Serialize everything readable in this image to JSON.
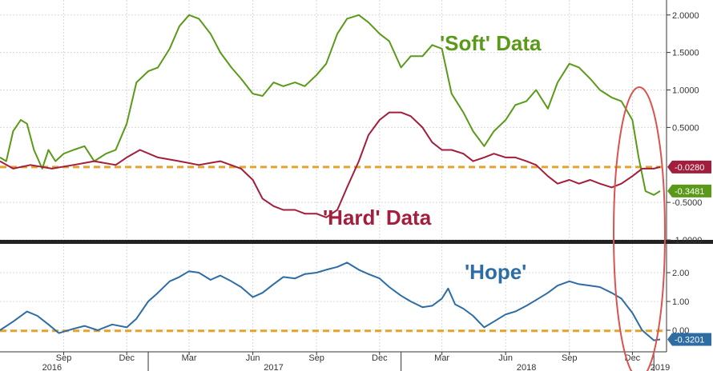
{
  "chart_data": [
    {
      "type": "line",
      "panel": "top",
      "ylim": [
        -1.0,
        2.2
      ],
      "yticks": [
        "2.0000",
        "1.5000",
        "1.0000",
        "0.5000",
        "-0.5000",
        "-1.0000"
      ],
      "ytick_values": [
        2.0,
        1.5,
        1.0,
        0.5,
        -0.5,
        -1.0
      ],
      "grid": true,
      "series": [
        {
          "name": "'Soft' Data",
          "color": "#5a9a18",
          "last_value_label": "-0.3481",
          "points": [
            [
              "2016-06-01",
              0.1
            ],
            [
              "2016-06-10",
              0.05
            ],
            [
              "2016-06-20",
              0.45
            ],
            [
              "2016-07-01",
              0.6
            ],
            [
              "2016-07-10",
              0.55
            ],
            [
              "2016-07-20",
              0.2
            ],
            [
              "2016-08-01",
              -0.05
            ],
            [
              "2016-08-10",
              0.2
            ],
            [
              "2016-08-20",
              0.05
            ],
            [
              "2016-09-01",
              0.15
            ],
            [
              "2016-09-15",
              0.2
            ],
            [
              "2016-10-01",
              0.25
            ],
            [
              "2016-10-15",
              0.05
            ],
            [
              "2016-11-01",
              0.15
            ],
            [
              "2016-11-15",
              0.2
            ],
            [
              "2016-12-01",
              0.55
            ],
            [
              "2016-12-15",
              1.1
            ],
            [
              "2017-01-01",
              1.25
            ],
            [
              "2017-01-15",
              1.3
            ],
            [
              "2017-02-01",
              1.55
            ],
            [
              "2017-02-15",
              1.85
            ],
            [
              "2017-03-01",
              2.0
            ],
            [
              "2017-03-15",
              1.95
            ],
            [
              "2017-04-01",
              1.75
            ],
            [
              "2017-04-15",
              1.5
            ],
            [
              "2017-05-01",
              1.3
            ],
            [
              "2017-05-15",
              1.15
            ],
            [
              "2017-06-01",
              0.95
            ],
            [
              "2017-06-15",
              0.92
            ],
            [
              "2017-07-01",
              1.1
            ],
            [
              "2017-07-15",
              1.05
            ],
            [
              "2017-08-01",
              1.1
            ],
            [
              "2017-08-15",
              1.05
            ],
            [
              "2017-09-01",
              1.2
            ],
            [
              "2017-09-15",
              1.35
            ],
            [
              "2017-10-01",
              1.75
            ],
            [
              "2017-10-15",
              1.95
            ],
            [
              "2017-11-01",
              2.0
            ],
            [
              "2017-11-15",
              1.9
            ],
            [
              "2017-12-01",
              1.75
            ],
            [
              "2017-12-15",
              1.65
            ],
            [
              "2018-01-01",
              1.3
            ],
            [
              "2018-01-15",
              1.45
            ],
            [
              "2018-02-01",
              1.45
            ],
            [
              "2018-02-15",
              1.6
            ],
            [
              "2018-03-01",
              1.55
            ],
            [
              "2018-03-15",
              0.95
            ],
            [
              "2018-04-01",
              0.7
            ],
            [
              "2018-04-15",
              0.45
            ],
            [
              "2018-05-01",
              0.25
            ],
            [
              "2018-05-15",
              0.45
            ],
            [
              "2018-06-01",
              0.6
            ],
            [
              "2018-06-15",
              0.8
            ],
            [
              "2018-07-01",
              0.85
            ],
            [
              "2018-07-15",
              1.0
            ],
            [
              "2018-08-01",
              0.75
            ],
            [
              "2018-08-15",
              1.1
            ],
            [
              "2018-09-01",
              1.35
            ],
            [
              "2018-09-15",
              1.3
            ],
            [
              "2018-10-01",
              1.15
            ],
            [
              "2018-10-15",
              1.0
            ],
            [
              "2018-11-01",
              0.9
            ],
            [
              "2018-11-15",
              0.85
            ],
            [
              "2018-12-01",
              0.6
            ],
            [
              "2018-12-10",
              0.1
            ],
            [
              "2018-12-20",
              -0.35
            ],
            [
              "2019-01-01",
              -0.4
            ],
            [
              "2019-01-10",
              -0.3481
            ]
          ]
        },
        {
          "name": "'Hard' Data",
          "color": "#a31d3c",
          "last_value_label": "-0.0280",
          "points": [
            [
              "2016-06-01",
              0.05
            ],
            [
              "2016-06-20",
              -0.05
            ],
            [
              "2016-07-15",
              0.0
            ],
            [
              "2016-08-15",
              -0.05
            ],
            [
              "2016-09-15",
              0.0
            ],
            [
              "2016-10-15",
              0.05
            ],
            [
              "2016-11-15",
              0.0
            ],
            [
              "2016-12-01",
              0.1
            ],
            [
              "2016-12-20",
              0.2
            ],
            [
              "2017-01-15",
              0.1
            ],
            [
              "2017-02-15",
              0.05
            ],
            [
              "2017-03-15",
              0.0
            ],
            [
              "2017-04-15",
              0.05
            ],
            [
              "2017-05-15",
              -0.05
            ],
            [
              "2017-06-01",
              -0.2
            ],
            [
              "2017-06-15",
              -0.45
            ],
            [
              "2017-07-01",
              -0.55
            ],
            [
              "2017-07-15",
              -0.6
            ],
            [
              "2017-08-01",
              -0.6
            ],
            [
              "2017-08-15",
              -0.65
            ],
            [
              "2017-09-01",
              -0.65
            ],
            [
              "2017-09-15",
              -0.7
            ],
            [
              "2017-10-01",
              -0.6
            ],
            [
              "2017-10-15",
              -0.3
            ],
            [
              "2017-11-01",
              0.05
            ],
            [
              "2017-11-15",
              0.4
            ],
            [
              "2017-12-01",
              0.6
            ],
            [
              "2017-12-15",
              0.7
            ],
            [
              "2018-01-01",
              0.7
            ],
            [
              "2018-01-15",
              0.65
            ],
            [
              "2018-02-01",
              0.5
            ],
            [
              "2018-02-15",
              0.3
            ],
            [
              "2018-03-01",
              0.2
            ],
            [
              "2018-03-15",
              0.2
            ],
            [
              "2018-04-01",
              0.15
            ],
            [
              "2018-04-15",
              0.05
            ],
            [
              "2018-05-01",
              0.1
            ],
            [
              "2018-05-15",
              0.15
            ],
            [
              "2018-06-01",
              0.1
            ],
            [
              "2018-06-15",
              0.1
            ],
            [
              "2018-07-01",
              0.05
            ],
            [
              "2018-07-15",
              0.0
            ],
            [
              "2018-08-01",
              -0.15
            ],
            [
              "2018-08-15",
              -0.25
            ],
            [
              "2018-09-01",
              -0.2
            ],
            [
              "2018-09-15",
              -0.25
            ],
            [
              "2018-10-01",
              -0.2
            ],
            [
              "2018-10-15",
              -0.25
            ],
            [
              "2018-11-01",
              -0.3
            ],
            [
              "2018-11-15",
              -0.25
            ],
            [
              "2018-12-01",
              -0.15
            ],
            [
              "2018-12-15",
              -0.05
            ],
            [
              "2019-01-01",
              -0.05
            ],
            [
              "2019-01-10",
              -0.028
            ]
          ]
        }
      ],
      "reference_line": {
        "y": -0.028,
        "color": "#e5a32c",
        "style": "dashed"
      }
    },
    {
      "type": "line",
      "panel": "bottom",
      "ylim": [
        -0.75,
        3.0
      ],
      "yticks": [
        "2.00",
        "1.00",
        "0.00"
      ],
      "ytick_values": [
        2.0,
        1.0,
        0.0
      ],
      "grid": true,
      "series": [
        {
          "name": "'Hope'",
          "color": "#2e6ca4",
          "last_value_label": "-0.3201",
          "points": [
            [
              "2016-06-01",
              0.0
            ],
            [
              "2016-06-20",
              0.3
            ],
            [
              "2016-07-10",
              0.65
            ],
            [
              "2016-07-25",
              0.5
            ],
            [
              "2016-08-10",
              0.2
            ],
            [
              "2016-08-25",
              -0.1
            ],
            [
              "2016-09-15",
              0.05
            ],
            [
              "2016-10-01",
              0.15
            ],
            [
              "2016-10-20",
              0.0
            ],
            [
              "2016-11-10",
              0.2
            ],
            [
              "2016-12-01",
              0.1
            ],
            [
              "2016-12-15",
              0.4
            ],
            [
              "2017-01-01",
              1.0
            ],
            [
              "2017-01-15",
              1.3
            ],
            [
              "2017-02-01",
              1.7
            ],
            [
              "2017-02-15",
              1.85
            ],
            [
              "2017-03-01",
              2.05
            ],
            [
              "2017-03-15",
              2.0
            ],
            [
              "2017-04-01",
              1.75
            ],
            [
              "2017-04-15",
              1.9
            ],
            [
              "2017-05-01",
              1.7
            ],
            [
              "2017-05-15",
              1.5
            ],
            [
              "2017-06-01",
              1.15
            ],
            [
              "2017-06-15",
              1.3
            ],
            [
              "2017-07-01",
              1.6
            ],
            [
              "2017-07-15",
              1.85
            ],
            [
              "2017-08-01",
              1.8
            ],
            [
              "2017-08-15",
              1.95
            ],
            [
              "2017-09-01",
              2.0
            ],
            [
              "2017-09-15",
              2.1
            ],
            [
              "2017-10-01",
              2.2
            ],
            [
              "2017-10-15",
              2.35
            ],
            [
              "2017-11-01",
              2.1
            ],
            [
              "2017-11-15",
              1.95
            ],
            [
              "2017-12-01",
              1.8
            ],
            [
              "2017-12-15",
              1.5
            ],
            [
              "2018-01-01",
              1.2
            ],
            [
              "2018-01-15",
              1.0
            ],
            [
              "2018-02-01",
              0.8
            ],
            [
              "2018-02-15",
              0.85
            ],
            [
              "2018-03-01",
              1.1
            ],
            [
              "2018-03-10",
              1.45
            ],
            [
              "2018-03-20",
              0.9
            ],
            [
              "2018-04-01",
              0.75
            ],
            [
              "2018-04-15",
              0.5
            ],
            [
              "2018-05-01",
              0.1
            ],
            [
              "2018-05-15",
              0.3
            ],
            [
              "2018-06-01",
              0.55
            ],
            [
              "2018-06-15",
              0.65
            ],
            [
              "2018-07-01",
              0.85
            ],
            [
              "2018-07-15",
              1.05
            ],
            [
              "2018-08-01",
              1.3
            ],
            [
              "2018-08-15",
              1.55
            ],
            [
              "2018-09-01",
              1.7
            ],
            [
              "2018-09-15",
              1.6
            ],
            [
              "2018-10-01",
              1.55
            ],
            [
              "2018-10-15",
              1.5
            ],
            [
              "2018-11-01",
              1.3
            ],
            [
              "2018-11-15",
              1.1
            ],
            [
              "2018-12-01",
              0.6
            ],
            [
              "2018-12-15",
              0.0
            ],
            [
              "2019-01-01",
              -0.35
            ],
            [
              "2019-01-10",
              -0.3201
            ]
          ]
        }
      ],
      "reference_line": {
        "y": -0.02,
        "color": "#e5a32c",
        "style": "dashed"
      }
    }
  ],
  "x_axis": {
    "range": [
      "2016-06-01",
      "2019-01-10"
    ],
    "month_ticks": [
      {
        "label": "Sep",
        "date": "2016-09-01"
      },
      {
        "label": "Dec",
        "date": "2016-12-01"
      },
      {
        "label": "Mar",
        "date": "2017-03-01"
      },
      {
        "label": "Jun",
        "date": "2017-06-01"
      },
      {
        "label": "Sep",
        "date": "2017-09-01"
      },
      {
        "label": "Dec",
        "date": "2017-12-01"
      },
      {
        "label": "Mar",
        "date": "2018-03-01"
      },
      {
        "label": "Jun",
        "date": "2018-06-01"
      },
      {
        "label": "Sep",
        "date": "2018-09-01"
      },
      {
        "label": "Dec",
        "date": "2018-12-01"
      }
    ],
    "year_labels": [
      {
        "label": "2016",
        "date": "2016-08-15"
      },
      {
        "label": "2017",
        "date": "2017-07-01"
      },
      {
        "label": "2018",
        "date": "2018-07-01"
      },
      {
        "label": "2019",
        "date": "2019-01-10"
      }
    ],
    "year_separators": [
      "2017-01-01",
      "2018-01-01",
      "2019-01-01"
    ]
  },
  "annotations": [
    {
      "text": "'Soft' Data",
      "color": "#5a9a18"
    },
    {
      "text": "'Hard' Data",
      "color": "#a31d3c"
    },
    {
      "text": "'Hope'",
      "color": "#2e6ca4"
    }
  ],
  "highlight": {
    "shape": "ellipse",
    "color": "#d9534f"
  }
}
